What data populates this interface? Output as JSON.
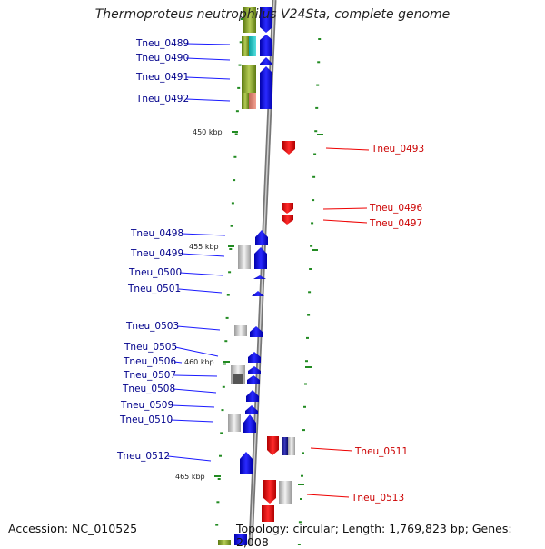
{
  "title": "Thermoproteus neutrophilus V24Sta, complete genome",
  "footer": {
    "accession": "Accession: NC_010525",
    "summary": "Topology: circular; Length: 1,769,823 bp; Genes: 2,008"
  },
  "colors": {
    "forward_strand": "#0000ee",
    "reverse_strand": "#ee0000",
    "left_label": "#00008b",
    "right_label": "#cc0000",
    "tick": "#228b22",
    "backbone": "#888888"
  },
  "scale": {
    "ticks": [
      {
        "label": "450 kbp"
      },
      {
        "label": "455 kbp"
      },
      {
        "label": "460 kbp"
      },
      {
        "label": "465 kbp"
      }
    ]
  },
  "genes_left": [
    {
      "id": "Tneu_0489"
    },
    {
      "id": "Tneu_0490"
    },
    {
      "id": "Tneu_0491"
    },
    {
      "id": "Tneu_0492"
    },
    {
      "id": "Tneu_0498"
    },
    {
      "id": "Tneu_0499"
    },
    {
      "id": "Tneu_0500"
    },
    {
      "id": "Tneu_0501"
    },
    {
      "id": "Tneu_0503"
    },
    {
      "id": "Tneu_0505"
    },
    {
      "id": "Tneu_0506"
    },
    {
      "id": "Tneu_0507"
    },
    {
      "id": "Tneu_0508"
    },
    {
      "id": "Tneu_0509"
    },
    {
      "id": "Tneu_0510"
    },
    {
      "id": "Tneu_0512"
    }
  ],
  "genes_right": [
    {
      "id": "Tneu_0493"
    },
    {
      "id": "Tneu_0496"
    },
    {
      "id": "Tneu_0497"
    },
    {
      "id": "Tneu_0511"
    },
    {
      "id": "Tneu_0513"
    }
  ]
}
